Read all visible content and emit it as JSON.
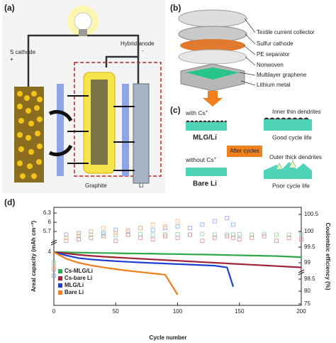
{
  "panel_a": {
    "label": "(a)",
    "s_cathode": "S cathode",
    "s_sign": "+",
    "hybrid_anode": "Hybrid anode",
    "anode_sign": "-",
    "graphite": "Graphite",
    "li": "Li"
  },
  "panel_b": {
    "label": "(b)",
    "layers": [
      "Textile current collector",
      "Sulfur cathode",
      "PE separator",
      "Nonwoven",
      "Multilayer graphene",
      "Lithium metal"
    ]
  },
  "panel_c": {
    "label": "(c)",
    "with_cs": "with Cs",
    "with_cs_sup": "+",
    "mlg_li": "MLG/Li",
    "inner": "Inner thin dendrites",
    "good": "Good cycle life",
    "without_cs": "without Cs",
    "bare_li": "Bare Li",
    "after": "After cycles",
    "outer": "Outer thick dendrites",
    "poor": "Poor cycle life"
  },
  "chart_data": {
    "type": "line",
    "label": "(d)",
    "x_label": "Cycle number",
    "y_label": "Areal capacity (mAh cm⁻²)",
    "y2_label": "Coulombic efficiency (%)",
    "x": [
      0,
      10,
      20,
      30,
      40,
      50,
      60,
      70,
      80,
      90,
      100,
      110,
      120,
      130,
      140,
      145,
      150,
      160,
      170,
      180,
      190,
      200
    ],
    "xlim": [
      0,
      200
    ],
    "xticks": [
      0,
      50,
      100,
      150,
      200
    ],
    "ylim": [
      0,
      6.3
    ],
    "yticks": [
      4.0,
      5.7,
      6.0,
      6.3
    ],
    "y2lim": [
      75,
      100.6
    ],
    "y2ticks": [
      75,
      80,
      98.5,
      99.0,
      99.5,
      100.0,
      100.5
    ],
    "legend": "lower left",
    "series": [
      {
        "name": "Cs-MLG/Li",
        "color": "#2ea84a",
        "ce_color": "#8fd49a",
        "values": [
          4.0,
          3.98,
          3.96,
          3.95,
          3.93,
          3.92,
          3.9,
          3.89,
          3.88,
          3.86,
          3.85,
          3.83,
          3.82,
          3.8,
          3.78,
          3.77,
          3.76,
          3.74,
          3.72,
          3.7,
          3.66,
          3.62
        ],
        "ce_values": [
          99.0,
          99.8,
          99.85,
          99.9,
          99.9,
          99.88,
          99.9,
          99.92,
          99.9,
          99.9,
          99.91,
          99.9,
          99.92,
          99.9,
          99.9,
          99.9,
          99.91,
          99.9,
          99.92,
          99.9,
          99.9,
          99.91
        ]
      },
      {
        "name": "Cs-bare Li",
        "color": "#a0233a",
        "ce_color": "#d98a9a",
        "values": [
          4.0,
          3.9,
          3.8,
          3.72,
          3.66,
          3.6,
          3.55,
          3.5,
          3.45,
          3.4,
          3.35,
          3.3,
          3.25,
          3.2,
          3.15,
          3.12,
          3.1,
          3.05,
          3.0,
          2.95,
          2.9,
          2.85
        ],
        "ce_values": [
          98.8,
          99.7,
          99.75,
          99.8,
          99.85,
          99.7,
          99.9,
          99.8,
          99.75,
          99.85,
          99.8,
          99.9,
          99.7,
          99.8,
          99.85,
          99.8,
          99.75,
          99.8,
          99.85,
          99.7,
          99.8,
          99.75
        ]
      },
      {
        "name": "MLG/Li",
        "color": "#1f3fcf",
        "ce_color": "#8ea4ee",
        "values": [
          4.0,
          3.75,
          3.55,
          3.45,
          3.38,
          3.32,
          3.27,
          3.22,
          3.18,
          3.14,
          3.1,
          3.06,
          3.02,
          2.98,
          2.85,
          1.4,
          null,
          null,
          null,
          null,
          null,
          null
        ],
        "ce_values": [
          98.6,
          99.9,
          99.95,
          100.0,
          99.95,
          100.05,
          100.0,
          100.1,
          100.05,
          100.1,
          100.15,
          100.1,
          100.2,
          100.3,
          100.4,
          100.2,
          null,
          null,
          null,
          null,
          null,
          null
        ]
      },
      {
        "name": "Bare Li",
        "color": "#f07f1e",
        "ce_color": "#f7bb86",
        "values": [
          4.0,
          3.5,
          3.2,
          3.0,
          2.85,
          2.72,
          2.6,
          2.5,
          2.4,
          2.3,
          0.8,
          null,
          null,
          null,
          null,
          null,
          null,
          null,
          null,
          null,
          null,
          null
        ],
        "ce_values": [
          98.9,
          99.8,
          99.9,
          100.0,
          100.1,
          99.95,
          100.05,
          100.1,
          100.2,
          100.15,
          100.3,
          null,
          null,
          null,
          null,
          null,
          null,
          null,
          null,
          null,
          null,
          null
        ]
      }
    ]
  }
}
